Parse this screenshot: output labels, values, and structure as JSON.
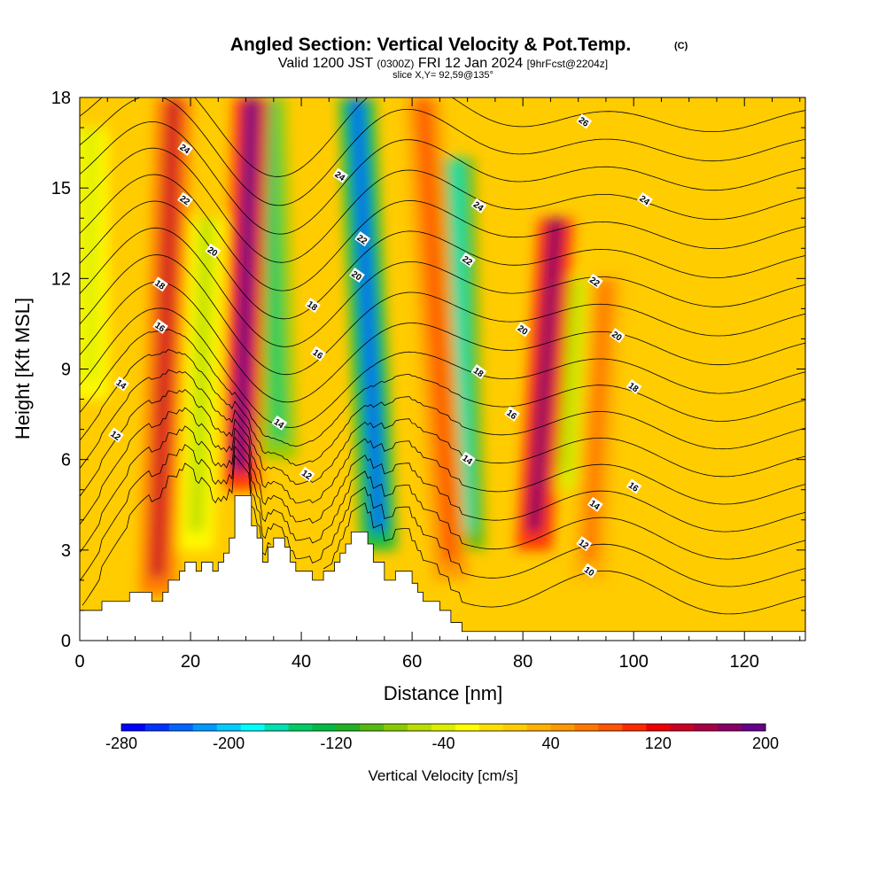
{
  "title": {
    "main": "Angled Section: Vertical Velocity & Pot.Temp.",
    "main_unit": "(C)",
    "valid_prefix": "Valid 1200 JST",
    "valid_utc": "(0300Z)",
    "valid_date": "FRI 12 Jan 2024",
    "valid_fcst": "[9hrFcst@2204z]",
    "slice": "slice X,Y= 92,59@135°"
  },
  "chart_data": {
    "type": "heatmap",
    "xlabel": "Distance [nm]",
    "ylabel": "Height [Kft MSL]",
    "xlim": [
      0,
      131
    ],
    "ylim": [
      0,
      18
    ],
    "x_ticks": [
      "0",
      "20",
      "40",
      "60",
      "80",
      "100",
      "120"
    ],
    "x_tick_values": [
      0,
      20,
      40,
      60,
      80,
      100,
      120
    ],
    "y_ticks": [
      "0",
      "3",
      "6",
      "9",
      "12",
      "15",
      "18"
    ],
    "y_tick_values": [
      0,
      3,
      6,
      9,
      12,
      15,
      18
    ],
    "colorbar": {
      "label": "Vertical Velocity [cm/s]",
      "min": -280,
      "max": 200,
      "step": 20,
      "tick_labels": [
        "-280",
        "-200",
        "-120",
        "-40",
        "40",
        "120",
        "200"
      ],
      "tick_values": [
        -280,
        -200,
        -120,
        -40,
        40,
        120,
        200
      ],
      "colors": [
        "#0000ff",
        "#0033ff",
        "#0066ff",
        "#0099ff",
        "#00ccff",
        "#00ffff",
        "#00e0b0",
        "#00cc66",
        "#00bb44",
        "#22b022",
        "#55bb11",
        "#88cc00",
        "#bbdd00",
        "#ddee00",
        "#ffff00",
        "#ffe000",
        "#ffcc00",
        "#ffb000",
        "#ff9900",
        "#ff7700",
        "#ff5500",
        "#ff2a00",
        "#ee0000",
        "#cc0022",
        "#aa0044",
        "#880066",
        "#660088"
      ]
    },
    "updraft_bands": [
      {
        "x_bottom": 14,
        "x_top": 17,
        "peak_cm_s": 130,
        "z_bottom": 1.5,
        "z_top": 18
      },
      {
        "x_bottom": 29,
        "x_top": 31,
        "peak_cm_s": 200,
        "z_bottom": 5,
        "z_top": 18
      },
      {
        "x_bottom": 82,
        "x_top": 86,
        "peak_cm_s": 170,
        "z_bottom": 3,
        "z_top": 14
      },
      {
        "x_bottom": 67,
        "x_top": 62,
        "peak_cm_s": 80,
        "z_bottom": 2,
        "z_top": 18
      },
      {
        "x_bottom": 92,
        "x_top": 95,
        "peak_cm_s": 60,
        "z_bottom": 2,
        "z_top": 12
      }
    ],
    "downdraft_bands": [
      {
        "x_bottom": 54,
        "x_top": 50,
        "peak_cm_s": -230,
        "z_bottom": 3,
        "z_top": 18
      },
      {
        "x_bottom": 70,
        "x_top": 68,
        "peak_cm_s": -170,
        "z_bottom": 3,
        "z_top": 16
      },
      {
        "x_bottom": 36,
        "x_top": 34,
        "peak_cm_s": -150,
        "z_bottom": 6,
        "z_top": 18
      },
      {
        "x_bottom": 21,
        "x_top": 23,
        "peak_cm_s": -50,
        "z_bottom": 3,
        "z_top": 14
      },
      {
        "x_bottom": 87,
        "x_top": 89,
        "peak_cm_s": -60,
        "z_bottom": 5,
        "z_top": 12
      },
      {
        "x_bottom": 2,
        "x_top": 2,
        "peak_cm_s": -45,
        "z_bottom": 8,
        "z_top": 17
      }
    ],
    "terrain": [
      [
        0,
        1
      ],
      [
        4,
        1
      ],
      [
        4,
        1.3
      ],
      [
        9,
        1.3
      ],
      [
        9,
        1.6
      ],
      [
        13,
        1.6
      ],
      [
        13,
        1.3
      ],
      [
        15,
        1.3
      ],
      [
        15,
        1.6
      ],
      [
        16,
        1.6
      ],
      [
        16,
        2
      ],
      [
        18,
        2
      ],
      [
        18,
        2.3
      ],
      [
        19,
        2.3
      ],
      [
        19,
        2.6
      ],
      [
        21,
        2.6
      ],
      [
        21,
        2.3
      ],
      [
        22,
        2.3
      ],
      [
        22,
        2.6
      ],
      [
        24,
        2.6
      ],
      [
        24,
        2.3
      ],
      [
        25,
        2.3
      ],
      [
        25,
        2.6
      ],
      [
        26,
        2.6
      ],
      [
        26,
        2.9
      ],
      [
        27,
        2.9
      ],
      [
        27,
        3.4
      ],
      [
        28,
        3.4
      ],
      [
        28,
        4.8
      ],
      [
        31,
        4.8
      ],
      [
        31,
        3.8
      ],
      [
        32,
        3.8
      ],
      [
        32,
        3.4
      ],
      [
        33,
        3.4
      ],
      [
        33,
        2.6
      ],
      [
        34,
        2.6
      ],
      [
        34,
        3.1
      ],
      [
        35,
        3.1
      ],
      [
        35,
        3.4
      ],
      [
        37,
        3.4
      ],
      [
        37,
        3.1
      ],
      [
        38,
        3.1
      ],
      [
        38,
        2.6
      ],
      [
        39,
        2.6
      ],
      [
        39,
        2.3
      ],
      [
        42,
        2.3
      ],
      [
        42,
        2
      ],
      [
        44,
        2
      ],
      [
        44,
        2.3
      ],
      [
        46,
        2.3
      ],
      [
        46,
        2.6
      ],
      [
        47,
        2.6
      ],
      [
        47,
        2.9
      ],
      [
        48,
        2.9
      ],
      [
        48,
        3.2
      ],
      [
        49,
        3.2
      ],
      [
        49,
        3.6
      ],
      [
        52,
        3.6
      ],
      [
        52,
        3.2
      ],
      [
        53,
        3.2
      ],
      [
        53,
        2.6
      ],
      [
        55,
        2.6
      ],
      [
        55,
        2
      ],
      [
        57,
        2
      ],
      [
        57,
        2.3
      ],
      [
        60,
        2.3
      ],
      [
        60,
        1.9
      ],
      [
        61,
        1.9
      ],
      [
        61,
        1.6
      ],
      [
        62,
        1.6
      ],
      [
        62,
        1.3
      ],
      [
        65,
        1.3
      ],
      [
        65,
        1
      ],
      [
        67,
        1
      ],
      [
        67,
        0.6
      ],
      [
        69,
        0.6
      ],
      [
        69,
        0.3
      ],
      [
        131,
        0.3
      ]
    ],
    "isentropes": {
      "levels": [
        10,
        11,
        12,
        13,
        14,
        15,
        16,
        17,
        18,
        19,
        20,
        21,
        22,
        23,
        24,
        25,
        26,
        27
      ],
      "labels": [
        {
          "text": "24",
          "x": 19,
          "y": 16.3
        },
        {
          "text": "22",
          "x": 19,
          "y": 14.6
        },
        {
          "text": "20",
          "x": 24,
          "y": 12.9
        },
        {
          "text": "18",
          "x": 14.5,
          "y": 11.8
        },
        {
          "text": "16",
          "x": 14.5,
          "y": 10.4
        },
        {
          "text": "14",
          "x": 7.5,
          "y": 8.5
        },
        {
          "text": "12",
          "x": 6.5,
          "y": 6.8
        },
        {
          "text": "24",
          "x": 47,
          "y": 15.4
        },
        {
          "text": "18",
          "x": 42,
          "y": 11.1
        },
        {
          "text": "16",
          "x": 43,
          "y": 9.5
        },
        {
          "text": "14",
          "x": 36,
          "y": 7.2
        },
        {
          "text": "12",
          "x": 41,
          "y": 5.5
        },
        {
          "text": "22",
          "x": 51,
          "y": 13.3
        },
        {
          "text": "20",
          "x": 50,
          "y": 12.1
        },
        {
          "text": "24",
          "x": 72,
          "y": 14.4
        },
        {
          "text": "22",
          "x": 70,
          "y": 12.6
        },
        {
          "text": "18",
          "x": 72,
          "y": 8.9
        },
        {
          "text": "14",
          "x": 70,
          "y": 6
        },
        {
          "text": "16",
          "x": 78,
          "y": 7.5
        },
        {
          "text": "20",
          "x": 80,
          "y": 10.3
        },
        {
          "text": "26",
          "x": 91,
          "y": 17.2
        },
        {
          "text": "24",
          "x": 102,
          "y": 14.6
        },
        {
          "text": "22",
          "x": 93,
          "y": 11.9
        },
        {
          "text": "20",
          "x": 97,
          "y": 10.1
        },
        {
          "text": "18",
          "x": 100,
          "y": 8.4
        },
        {
          "text": "16",
          "x": 100,
          "y": 5.1
        },
        {
          "text": "14",
          "x": 93,
          "y": 4.5
        },
        {
          "text": "12",
          "x": 91,
          "y": 3.2
        },
        {
          "text": "10",
          "x": 92,
          "y": 2.3
        }
      ]
    }
  }
}
